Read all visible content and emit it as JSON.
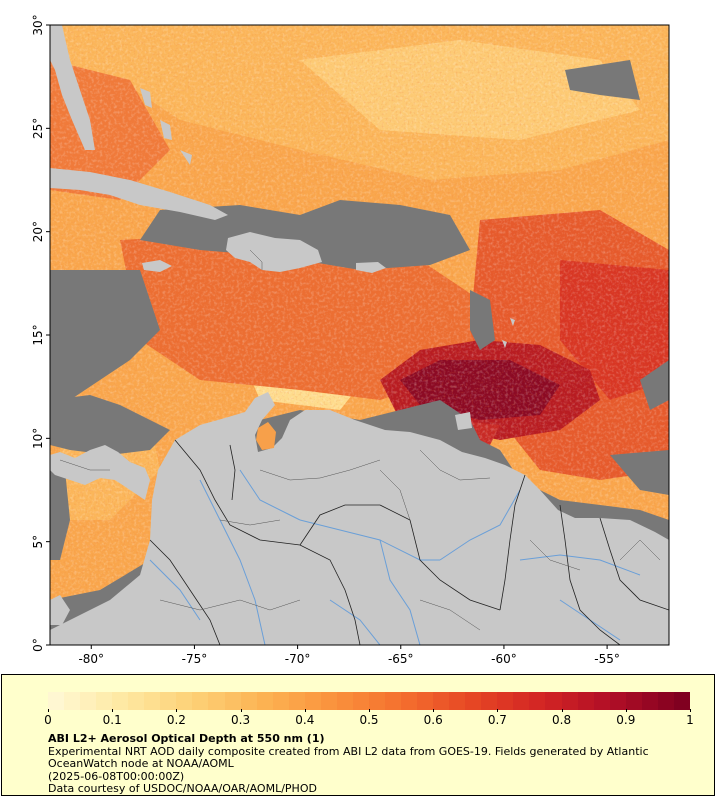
{
  "map": {
    "lat_labels": [
      "0°",
      "5°",
      "10°",
      "15°",
      "20°",
      "25°",
      "30°"
    ],
    "lon_labels": [
      "-80°",
      "-75°",
      "-70°",
      "-65°",
      "-60°",
      "-55°"
    ],
    "lat_range": [
      0,
      30
    ],
    "lon_range": [
      -82,
      -52
    ],
    "colors": {
      "land": "#c8c8c8",
      "no_data": "#787878",
      "border": "#222222",
      "river": "#6a9fd8",
      "aod_low": "#ffefb0",
      "aod_high": "#800020"
    }
  },
  "legend": {
    "colorbar_ticks": [
      "0",
      "0.1",
      "0.2",
      "0.3",
      "0.4",
      "0.5",
      "0.6",
      "0.7",
      "0.8",
      "0.9",
      "1"
    ],
    "title": "ABI L2+ Aerosol Optical Depth at 550 nm (1)",
    "line1": "Experimental NRT AOD daily composite created from ABI L2 data from GOES-19. Fields generated by Atlantic OceanWatch node at NOAA/AOML",
    "line2": "(2025-06-08T00:00:00Z)",
    "line3": "Data courtesy of USDOC/NOAA/OAR/AOML/PHOD"
  }
}
